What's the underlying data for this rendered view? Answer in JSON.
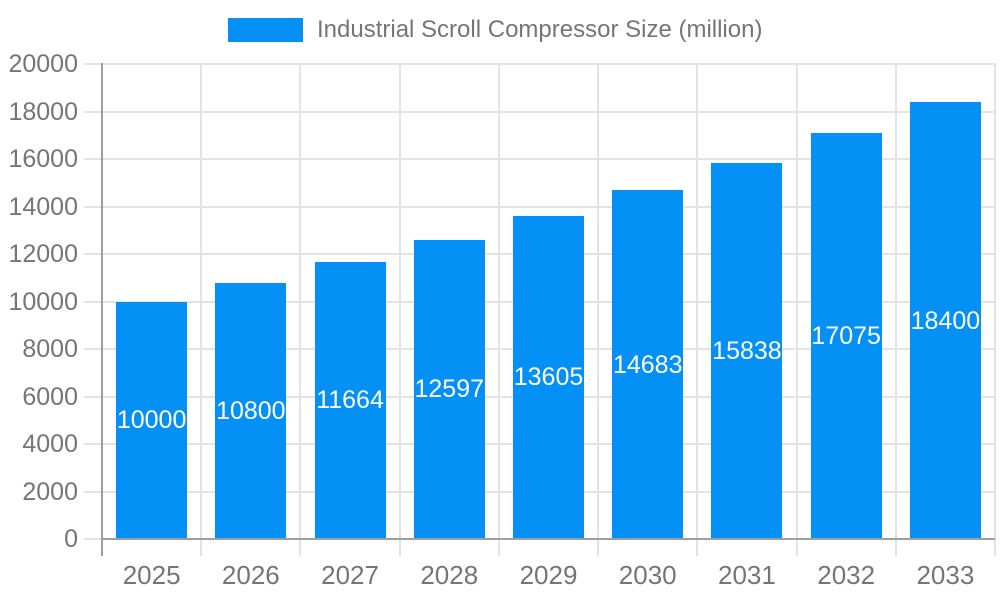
{
  "legend": {
    "label": "Industrial Scroll Compressor Size (million)"
  },
  "chart_data": {
    "type": "bar",
    "title": "Industrial Scroll Compressor Size (million)",
    "categories": [
      "2025",
      "2026",
      "2027",
      "2028",
      "2029",
      "2030",
      "2031",
      "2032",
      "2033"
    ],
    "series": [
      {
        "name": "Industrial Scroll Compressor Size (million)",
        "values": [
          10000,
          10800,
          11664,
          12597,
          13605,
          14683,
          15838,
          17075,
          18400
        ]
      }
    ],
    "values": [
      10000,
      10800,
      11664,
      12597,
      13605,
      14683,
      15838,
      17075,
      18400
    ],
    "value_labels": [
      "10000",
      "10800",
      "11664",
      "12597",
      "13605",
      "14683",
      "15838",
      "17075",
      "18400"
    ],
    "yticks": [
      "0",
      "2000",
      "4000",
      "6000",
      "8000",
      "10000",
      "12000",
      "14000",
      "16000",
      "18000",
      "20000"
    ],
    "ylim": [
      0,
      20000
    ],
    "ytick_step": 2000,
    "xlabel": "",
    "ylabel": "",
    "grid": true,
    "legend_position": "top",
    "colors": {
      "bar": "#0590f5",
      "grid": "#e3e3e3",
      "axis": "#9e9e9e",
      "tick_text": "#757575",
      "value_text": "#ffffff",
      "background": "#ffffff"
    }
  }
}
